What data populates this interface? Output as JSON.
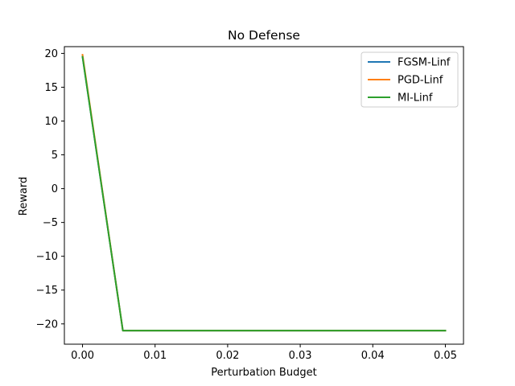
{
  "chart_data": {
    "type": "line",
    "title": "No Defense",
    "xlabel": "Perturbation Budget",
    "ylabel": "Reward",
    "xlim": [
      -0.0025,
      0.0525
    ],
    "ylim": [
      -23.0,
      21.0
    ],
    "xticks": [
      0.0,
      0.01,
      0.02,
      0.03,
      0.04,
      0.05
    ],
    "xtick_labels": [
      "0.00",
      "0.01",
      "0.02",
      "0.03",
      "0.04",
      "0.05"
    ],
    "yticks": [
      -20,
      -15,
      -10,
      -5,
      0,
      5,
      10,
      15,
      20
    ],
    "ytick_labels": [
      "−20",
      "−15",
      "−10",
      "−5",
      "0",
      "5",
      "10",
      "15",
      "20"
    ],
    "grid": false,
    "legend_position": "top-right",
    "x": [
      0.0,
      0.00556,
      0.01111,
      0.01667,
      0.02222,
      0.02778,
      0.03333,
      0.03889,
      0.04444,
      0.05
    ],
    "series": [
      {
        "name": "FGSM-Linf",
        "color": "#1f77b4",
        "values": [
          19.5,
          -21,
          -21,
          -21,
          -21,
          -21,
          -21,
          -21,
          -21,
          -21
        ]
      },
      {
        "name": "PGD-Linf",
        "color": "#ff7f0e",
        "values": [
          19.8,
          -21,
          -21,
          -21,
          -21,
          -21,
          -21,
          -21,
          -21,
          -21
        ]
      },
      {
        "name": "MI-Linf",
        "color": "#2ca02c",
        "values": [
          19.5,
          -21,
          -21,
          -21,
          -21,
          -21,
          -21,
          -21,
          -21,
          -21
        ]
      }
    ]
  }
}
